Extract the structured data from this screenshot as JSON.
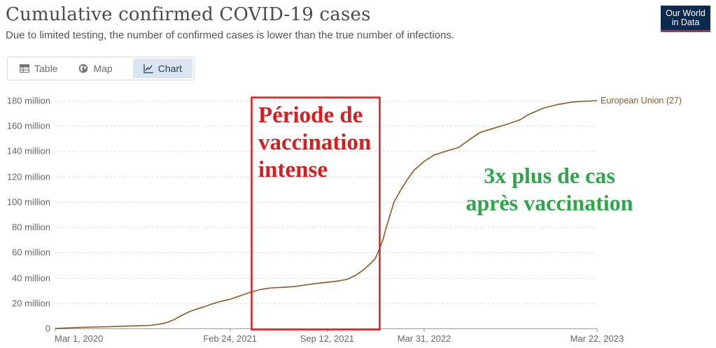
{
  "header": {
    "title": "Cumulative confirmed COVID-19 cases",
    "subtitle": "Due to limited testing, the number of confirmed cases is lower than the true number of infections.",
    "logo_line1": "Our World",
    "logo_line2": "in Data"
  },
  "tabs": [
    {
      "label": "Table",
      "icon": "table-icon",
      "active": false
    },
    {
      "label": "Map",
      "icon": "globe-icon",
      "active": false
    },
    {
      "label": "Chart",
      "icon": "line-chart-icon",
      "active": true
    }
  ],
  "annotations": {
    "highlight_box_label": [
      "Période de",
      "vaccination",
      "intense"
    ],
    "comparison_label": [
      "3x plus de cas",
      "après vaccination"
    ],
    "highlight_color": "#d42020",
    "comparison_color": "#2aa84a"
  },
  "chart_data": {
    "type": "line",
    "title": "Cumulative confirmed COVID-19 cases",
    "subtitle": "Due to limited testing, the number of confirmed cases is lower than the true number of infections.",
    "xlabel": "",
    "ylabel": "",
    "x_tick_labels": [
      "Mar 1, 2020",
      "Feb 24, 2021",
      "Sep 12, 2021",
      "Mar 31, 2022",
      "Mar 22, 2023"
    ],
    "x_tick_dates": [
      "2020-03-01",
      "2021-02-24",
      "2021-09-12",
      "2022-03-31",
      "2023-03-22"
    ],
    "y_tick_labels": [
      "0",
      "20 million",
      "40 million",
      "60 million",
      "80 million",
      "100 million",
      "120 million",
      "140 million",
      "160 million",
      "180 million"
    ],
    "y_tick_values": [
      0,
      20,
      40,
      60,
      80,
      100,
      120,
      140,
      160,
      180
    ],
    "y_unit": "million",
    "ylim": [
      0,
      180
    ],
    "xlim": [
      "2020-03-01",
      "2023-03-22"
    ],
    "grid": "horizontal dashed",
    "line_color": "#8a5a1e",
    "series": [
      {
        "name": "European Union (27)",
        "points": [
          [
            "2020-03-01",
            0
          ],
          [
            "2020-04-15",
            0.7
          ],
          [
            "2020-07-01",
            1.5
          ],
          [
            "2020-09-15",
            2.5
          ],
          [
            "2020-10-10",
            4
          ],
          [
            "2020-10-20",
            5
          ],
          [
            "2020-11-01",
            7
          ],
          [
            "2020-11-15",
            10
          ],
          [
            "2020-12-01",
            13
          ],
          [
            "2020-12-15",
            15
          ],
          [
            "2021-01-01",
            17
          ],
          [
            "2021-01-15",
            19
          ],
          [
            "2021-02-01",
            21
          ],
          [
            "2021-02-24",
            23
          ],
          [
            "2021-03-15",
            25.5
          ],
          [
            "2021-04-10",
            29
          ],
          [
            "2021-05-01",
            31
          ],
          [
            "2021-05-20",
            32
          ],
          [
            "2021-06-15",
            32.5
          ],
          [
            "2021-07-05",
            33
          ],
          [
            "2021-08-01",
            34.5
          ],
          [
            "2021-08-20",
            35.5
          ],
          [
            "2021-09-12",
            36.5
          ],
          [
            "2021-10-05",
            37.5
          ],
          [
            "2021-10-25",
            39
          ],
          [
            "2021-11-10",
            42
          ],
          [
            "2021-11-25",
            46
          ],
          [
            "2021-12-10",
            51
          ],
          [
            "2021-12-20",
            55
          ],
          [
            "2021-12-28",
            62
          ],
          [
            "2022-01-05",
            70
          ],
          [
            "2022-01-12",
            80
          ],
          [
            "2022-01-20",
            90
          ],
          [
            "2022-01-28",
            100
          ],
          [
            "2022-02-10",
            109
          ],
          [
            "2022-02-25",
            118
          ],
          [
            "2022-03-10",
            125
          ],
          [
            "2022-03-31",
            132
          ],
          [
            "2022-04-20",
            137
          ],
          [
            "2022-05-15",
            140
          ],
          [
            "2022-06-10",
            143
          ],
          [
            "2022-07-05",
            150
          ],
          [
            "2022-07-25",
            155
          ],
          [
            "2022-08-20",
            158
          ],
          [
            "2022-09-15",
            161
          ],
          [
            "2022-10-15",
            165
          ],
          [
            "2022-11-01",
            169
          ],
          [
            "2022-12-01",
            174
          ],
          [
            "2023-01-01",
            177
          ],
          [
            "2023-02-01",
            179
          ],
          [
            "2023-03-22",
            180
          ]
        ]
      }
    ]
  }
}
